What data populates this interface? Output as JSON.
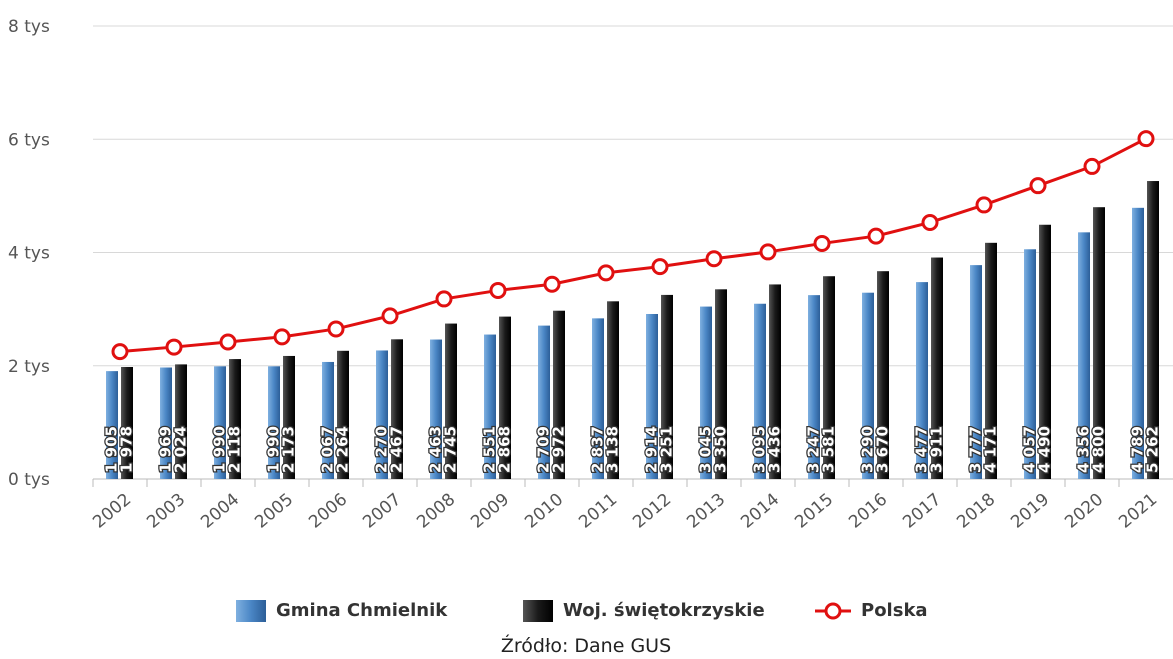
{
  "chart_data": {
    "type": "bar-line",
    "categories": [
      "2002",
      "2003",
      "2004",
      "2005",
      "2006",
      "2007",
      "2008",
      "2009",
      "2010",
      "2011",
      "2012",
      "2013",
      "2014",
      "2015",
      "2016",
      "2017",
      "2018",
      "2019",
      "2020",
      "2021"
    ],
    "series": [
      {
        "name": "Gmina Chmielnik",
        "type": "bar",
        "color": "#4a86c5",
        "values": [
          1905,
          1969,
          1990,
          1990,
          2067,
          2270,
          2463,
          2551,
          2709,
          2837,
          2914,
          3045,
          3095,
          3247,
          3290,
          3477,
          3777,
          4057,
          4356,
          4789
        ],
        "value_labels": [
          "1 905",
          "1 969",
          "1 990",
          "1 990",
          "2 067",
          "2 270",
          "2 463",
          "2 551",
          "2 709",
          "2 837",
          "2 914",
          "3 045",
          "3 095",
          "3 247",
          "3 290",
          "3 477",
          "3 777",
          "4 057",
          "4 356",
          "4 789"
        ]
      },
      {
        "name": "Woj. świętokrzyskie",
        "type": "bar",
        "color": "#1a1a1a",
        "values": [
          1978,
          2024,
          2118,
          2173,
          2264,
          2467,
          2745,
          2868,
          2972,
          3138,
          3251,
          3350,
          3436,
          3581,
          3670,
          3911,
          4171,
          4490,
          4800,
          5262
        ],
        "value_labels": [
          "1 978",
          "2 024",
          "2 118",
          "2 173",
          "2 264",
          "2 467",
          "2 745",
          "2 868",
          "2 972",
          "3 138",
          "3 251",
          "3 350",
          "3 436",
          "3 581",
          "3 670",
          "3 911",
          "4 171",
          "4 490",
          "4 800",
          "5 262"
        ]
      },
      {
        "name": "Polska",
        "type": "line",
        "color": "#e01010",
        "values": [
          2250,
          2330,
          2420,
          2510,
          2650,
          2880,
          3180,
          3330,
          3440,
          3640,
          3750,
          3890,
          4010,
          4160,
          4290,
          4530,
          4840,
          5180,
          5520,
          6010
        ]
      }
    ],
    "ylim": [
      0,
      8000
    ],
    "yticks": [
      {
        "value": 0,
        "label": "0 tys"
      },
      {
        "value": 2000,
        "label": "2 tys"
      },
      {
        "value": 4000,
        "label": "4 tys"
      },
      {
        "value": 6000,
        "label": "6 tys"
      },
      {
        "value": 8000,
        "label": "8 tys"
      }
    ],
    "grid": true,
    "legend": "bottom",
    "source": "Źródło: Dane GUS"
  }
}
